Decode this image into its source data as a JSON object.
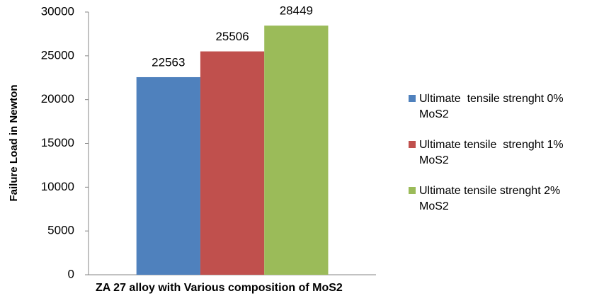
{
  "chart_data": {
    "type": "bar",
    "x_label": "ZA 27 alloy with Various composition of MoS2",
    "y_label": "Failure Load in Newton",
    "categories": [
      null
    ],
    "series": [
      {
        "name": "Ultimate  tensile strenght 0% MoS2",
        "color": "#4f81bd",
        "values": [
          22563
        ]
      },
      {
        "name": "Ultimate tensile  strenght 1% MoS2",
        "color": "#c0504d",
        "values": [
          25506
        ]
      },
      {
        "name": "Ultimate tensile strenght 2% MoS2",
        "color": "#9bbb59",
        "values": [
          28449
        ]
      }
    ],
    "ylim": [
      0,
      30000
    ],
    "yticks": [
      0,
      5000,
      10000,
      15000,
      20000,
      25000,
      30000
    ],
    "legend": "right"
  }
}
